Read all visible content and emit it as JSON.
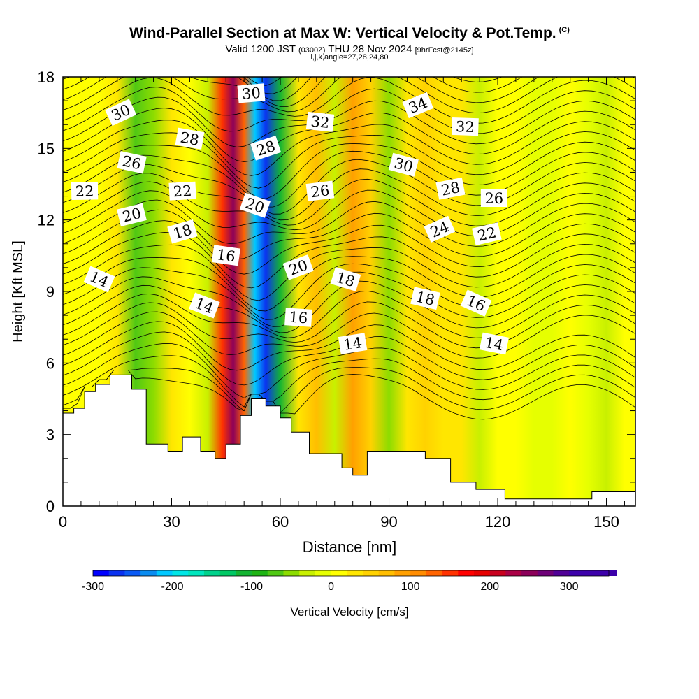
{
  "header": {
    "title": "Wind-Parallel Section at Max W: Vertical Velocity & Pot.Temp.",
    "copyright": "(C)",
    "valid_prefix": "Valid 1200 JST",
    "valid_utc": "(0300Z)",
    "valid_date": "THU 28 Nov 2024",
    "forecast": "[9hrFcst@2145z]",
    "indices": "i,j,k,angle=27,28,24,80"
  },
  "chart_data": {
    "type": "heatmap",
    "xlabel": "Distance [nm]",
    "ylabel": "Height [Kft MSL]",
    "xlim": [
      0,
      158
    ],
    "ylim": [
      0,
      18
    ],
    "xticks": [
      0,
      30,
      60,
      90,
      120,
      150
    ],
    "yticks": [
      0,
      3,
      6,
      9,
      12,
      15,
      18
    ],
    "colorbar": {
      "label": "Vertical Velocity [cm/s]",
      "range": [
        -300,
        350
      ],
      "step": 20,
      "ticks": [
        -300,
        -200,
        -100,
        0,
        100,
        200,
        300
      ],
      "colors": [
        "#0000ff",
        "#0a32f0",
        "#0a5af5",
        "#0a8cf0",
        "#00c8ff",
        "#00e6e6",
        "#00e6be",
        "#00d28c",
        "#00c864",
        "#14b432",
        "#1eb414",
        "#50c814",
        "#8cdc00",
        "#c8f000",
        "#e6ff00",
        "#ffff00",
        "#ffe600",
        "#ffd200",
        "#ffbe00",
        "#ffa000",
        "#ff8c00",
        "#ff6400",
        "#ff3200",
        "#ff0000",
        "#e60000",
        "#c8001e",
        "#aa0046",
        "#8c005a",
        "#6e0078",
        "#500096",
        "#3c00aa",
        "#3c00aa"
      ]
    },
    "w_columns": [
      {
        "x": 0,
        "w": 10
      },
      {
        "x": 5,
        "w": 5
      },
      {
        "x": 10,
        "w": 10
      },
      {
        "x": 15,
        "w": 20
      },
      {
        "x": 20,
        "w": -70
      },
      {
        "x": 25,
        "w": -60
      },
      {
        "x": 30,
        "w": 30
      },
      {
        "x": 35,
        "w": 10
      },
      {
        "x": 40,
        "w": -40
      },
      {
        "x": 44,
        "w": 150
      },
      {
        "x": 47,
        "w": 240
      },
      {
        "x": 50,
        "w": 120
      },
      {
        "x": 53,
        "w": -220
      },
      {
        "x": 56,
        "w": -280
      },
      {
        "x": 60,
        "w": -120
      },
      {
        "x": 65,
        "w": 30
      },
      {
        "x": 70,
        "w": 60
      },
      {
        "x": 75,
        "w": -30
      },
      {
        "x": 80,
        "w": 90
      },
      {
        "x": 85,
        "w": 50
      },
      {
        "x": 90,
        "w": -60
      },
      {
        "x": 95,
        "w": 20
      },
      {
        "x": 100,
        "w": 40
      },
      {
        "x": 105,
        "w": 30
      },
      {
        "x": 110,
        "w": 20
      },
      {
        "x": 115,
        "w": -30
      },
      {
        "x": 120,
        "w": 10
      },
      {
        "x": 125,
        "w": 0
      },
      {
        "x": 130,
        "w": -10
      },
      {
        "x": 135,
        "w": -20
      },
      {
        "x": 140,
        "w": 5
      },
      {
        "x": 145,
        "w": -15
      },
      {
        "x": 150,
        "w": -25
      },
      {
        "x": 155,
        "w": 0
      },
      {
        "x": 158,
        "w": 0
      }
    ],
    "terrain": [
      {
        "x": 0,
        "h": 3.9
      },
      {
        "x": 3,
        "h": 4.1
      },
      {
        "x": 6,
        "h": 4.8
      },
      {
        "x": 9,
        "h": 5.1
      },
      {
        "x": 13,
        "h": 5.5
      },
      {
        "x": 19,
        "h": 4.9
      },
      {
        "x": 23,
        "h": 2.6
      },
      {
        "x": 29,
        "h": 2.3
      },
      {
        "x": 33,
        "h": 2.9
      },
      {
        "x": 38,
        "h": 2.3
      },
      {
        "x": 42,
        "h": 2.0
      },
      {
        "x": 45,
        "h": 2.6
      },
      {
        "x": 49,
        "h": 3.8
      },
      {
        "x": 52,
        "h": 4.5
      },
      {
        "x": 56,
        "h": 4.2
      },
      {
        "x": 60,
        "h": 3.7
      },
      {
        "x": 63,
        "h": 3.1
      },
      {
        "x": 68,
        "h": 2.2
      },
      {
        "x": 77,
        "h": 1.6
      },
      {
        "x": 80,
        "h": 1.3
      },
      {
        "x": 84,
        "h": 2.3
      },
      {
        "x": 94,
        "h": 2.3
      },
      {
        "x": 100,
        "h": 2.0
      },
      {
        "x": 107,
        "h": 1.0
      },
      {
        "x": 114,
        "h": 0.7
      },
      {
        "x": 122,
        "h": 0.3
      },
      {
        "x": 146,
        "h": 0.6
      },
      {
        "x": 158,
        "h": 0.6
      }
    ],
    "theta_labels": [
      {
        "x": 16,
        "y": 16.5,
        "text": "30"
      },
      {
        "x": 19,
        "y": 14.4,
        "text": "26"
      },
      {
        "x": 6,
        "y": 13.2,
        "text": "22"
      },
      {
        "x": 19,
        "y": 12.2,
        "text": "20"
      },
      {
        "x": 10,
        "y": 9.5,
        "text": "14"
      },
      {
        "x": 35,
        "y": 15.4,
        "text": "28"
      },
      {
        "x": 33,
        "y": 13.2,
        "text": "22"
      },
      {
        "x": 33,
        "y": 11.5,
        "text": "18"
      },
      {
        "x": 39,
        "y": 8.4,
        "text": "14"
      },
      {
        "x": 45,
        "y": 10.5,
        "text": "16"
      },
      {
        "x": 52,
        "y": 17.3,
        "text": "30"
      },
      {
        "x": 56,
        "y": 15.0,
        "text": "28"
      },
      {
        "x": 53,
        "y": 12.6,
        "text": "20"
      },
      {
        "x": 71,
        "y": 16.1,
        "text": "32"
      },
      {
        "x": 71,
        "y": 13.2,
        "text": "26"
      },
      {
        "x": 65,
        "y": 10.0,
        "text": "20"
      },
      {
        "x": 78,
        "y": 9.5,
        "text": "18"
      },
      {
        "x": 65,
        "y": 7.9,
        "text": "16"
      },
      {
        "x": 80,
        "y": 6.8,
        "text": "14"
      },
      {
        "x": 98,
        "y": 16.8,
        "text": "34"
      },
      {
        "x": 94,
        "y": 14.3,
        "text": "30"
      },
      {
        "x": 111,
        "y": 15.9,
        "text": "32"
      },
      {
        "x": 107,
        "y": 13.3,
        "text": "28"
      },
      {
        "x": 104,
        "y": 11.6,
        "text": "24"
      },
      {
        "x": 100,
        "y": 8.7,
        "text": "18"
      },
      {
        "x": 119,
        "y": 12.9,
        "text": "26"
      },
      {
        "x": 117,
        "y": 11.4,
        "text": "22"
      },
      {
        "x": 114,
        "y": 8.5,
        "text": "16"
      },
      {
        "x": 119,
        "y": 6.8,
        "text": "14"
      }
    ]
  }
}
